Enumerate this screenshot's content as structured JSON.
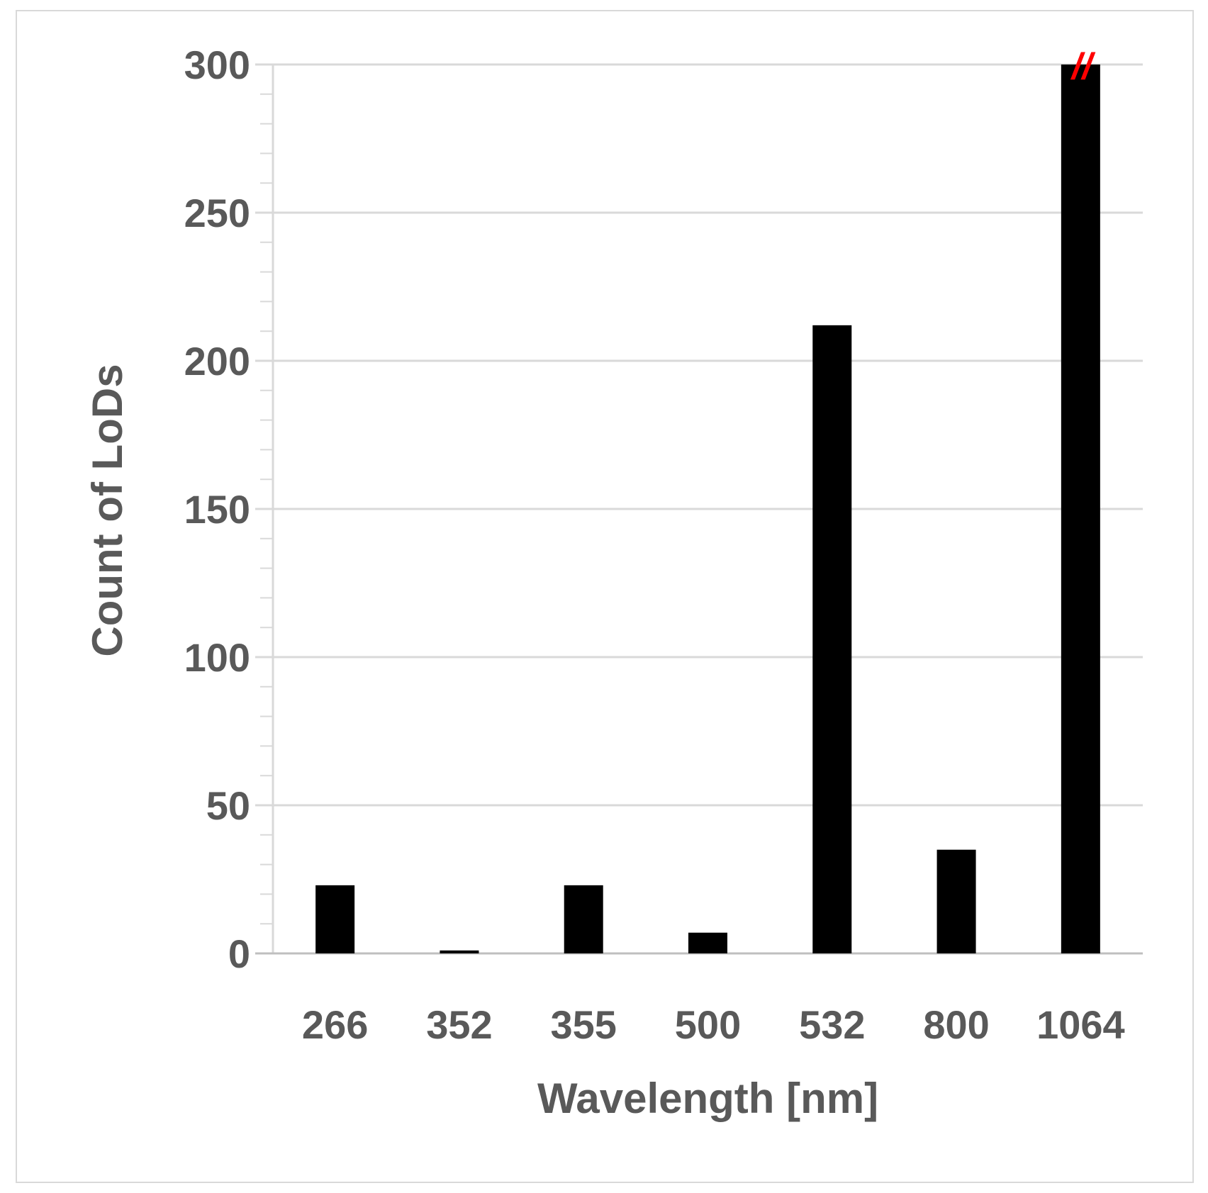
{
  "chart_data": {
    "type": "bar",
    "title": "",
    "xlabel": "Wavelength [nm]",
    "ylabel": "Count of LoDs",
    "categories": [
      "266",
      "352",
      "355",
      "500",
      "532",
      "800",
      "1064"
    ],
    "values": [
      23,
      1,
      23,
      7,
      212,
      35,
      300
    ],
    "ylim": [
      0,
      300
    ],
    "yticks": [
      "0",
      "50",
      "100",
      "150",
      "200",
      "250",
      "300"
    ],
    "ytick_values": [
      0,
      50,
      100,
      150,
      200,
      250,
      300
    ],
    "minor_tick_step": 10,
    "grid": true,
    "legend": "none",
    "broken_axis_marker": "//",
    "colors": {
      "bar": "#000000",
      "grid": "#d9d9d9",
      "axis": "#bfbfbf",
      "text": "#595959",
      "break_marker": "#ff0000"
    }
  }
}
